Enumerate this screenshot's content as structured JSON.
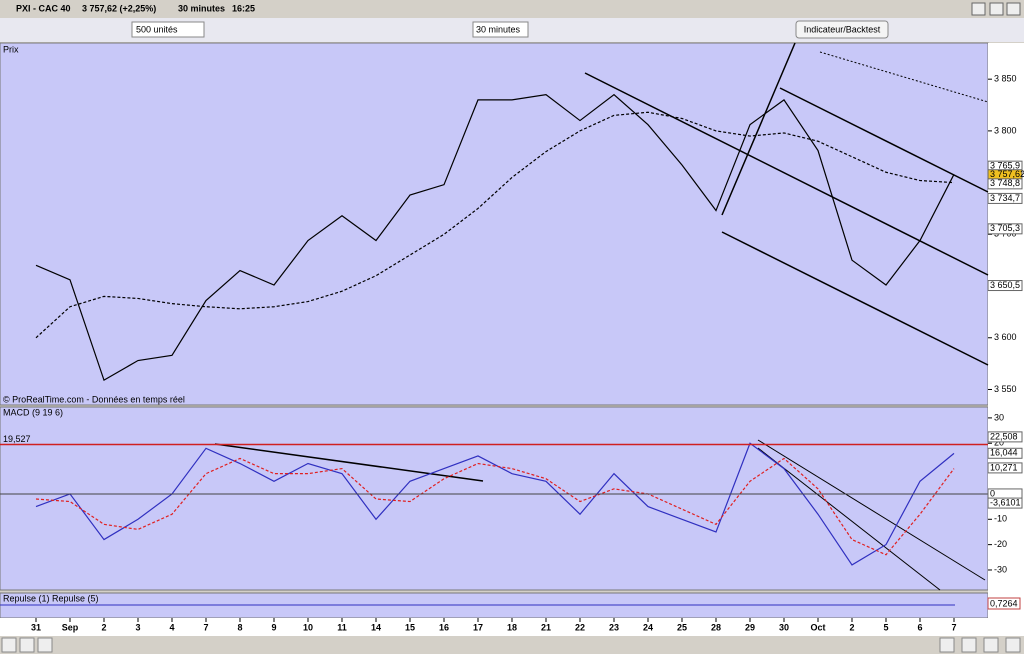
{
  "window": {
    "symbol": "PXI - CAC 40",
    "quote": "3 757,62 (+2,25%)",
    "interval": "30 minutes",
    "time": "16:25"
  },
  "toolbar": {
    "units": "500 unités",
    "period": "30 minutes",
    "button": "Indicateur/Backtest"
  },
  "price_panel": {
    "type": "line",
    "label": "Prix",
    "watermark": "© ProRealTime.com - Données en temps réel",
    "ylim": [
      3535,
      3884
    ],
    "yticks": [
      {
        "value": 3850,
        "label": "3 850"
      },
      {
        "value": 3800,
        "label": "3 800"
      },
      {
        "value": 3700,
        "label": "3 700"
      },
      {
        "value": 3600,
        "label": "3 600"
      },
      {
        "value": 3550,
        "label": "3 550"
      }
    ],
    "price_tags": [
      {
        "value": 3765.9,
        "label": "3 765,9"
      },
      {
        "value": 3757.62,
        "label": "3 757,62"
      },
      {
        "value": 3748.8,
        "label": "3 748,8"
      },
      {
        "value": 3734.7,
        "label": "3 734,7"
      },
      {
        "value": 3705.3,
        "label": "3 705,3"
      },
      {
        "value": 3650.5,
        "label": "3 650,5"
      }
    ],
    "series": [
      {
        "color": "#000000",
        "values": [
          3670,
          3656,
          3559,
          3578,
          3583,
          3636,
          3665,
          3651,
          3694,
          3718,
          3694,
          3738,
          3748,
          3830,
          3830,
          3835,
          3810,
          3835,
          3806,
          3767,
          3723,
          3806,
          3830,
          3781,
          3675,
          3651,
          3694,
          3758
        ]
      },
      {
        "color": "#000000",
        "dashed": true,
        "values": [
          3600,
          3630,
          3640,
          3638,
          3633,
          3630,
          3628,
          3630,
          3635,
          3645,
          3660,
          3680,
          3700,
          3725,
          3755,
          3780,
          3800,
          3815,
          3818,
          3812,
          3800,
          3795,
          3798,
          3790,
          3775,
          3760,
          3752,
          3750
        ]
      }
    ]
  },
  "macd_panel": {
    "type": "line",
    "label": "MACD (9 19 6)",
    "level_label": "19,527",
    "level": 19.527,
    "ylim": [
      -37.9,
      34.3
    ],
    "yticks": [
      30,
      20,
      10,
      0,
      -10,
      -20,
      -30
    ],
    "tags": [
      {
        "value": 22.508,
        "label": "22,508"
      },
      {
        "value": 16.044,
        "label": "16,044"
      },
      {
        "value": 10.271,
        "label": "10,271"
      },
      {
        "value": 0,
        "label": "0"
      },
      {
        "value": -3.6101,
        "label": "-3,6101"
      }
    ],
    "series": [
      {
        "color": "#3030c0",
        "values": [
          -5,
          0,
          -18,
          -10,
          0,
          18,
          12,
          5,
          12,
          8,
          -10,
          5,
          10,
          15,
          8,
          5,
          -8,
          8,
          -5,
          -10,
          -15,
          20,
          10,
          -8,
          -28,
          -20,
          5,
          16
        ]
      },
      {
        "color": "#e02020",
        "dashed": true,
        "values": [
          -2,
          -3,
          -12,
          -14,
          -8,
          8,
          14,
          8,
          8,
          10,
          -2,
          -3,
          6,
          12,
          10,
          6,
          -3,
          2,
          0,
          -6,
          -12,
          5,
          14,
          2,
          -18,
          -24,
          -8,
          10
        ]
      }
    ]
  },
  "repulse_panel": {
    "label": "Repulse (1) Repulse (5)",
    "tag": "0,7264"
  },
  "x_axis": {
    "categories": [
      "31",
      "Sep",
      "2",
      "3",
      "4",
      "7",
      "8",
      "9",
      "10",
      "11",
      "14",
      "15",
      "16",
      "17",
      "18",
      "21",
      "22",
      "23",
      "24",
      "25",
      "28",
      "29",
      "30",
      "Oct",
      "2",
      "5",
      "6",
      "7"
    ]
  }
}
